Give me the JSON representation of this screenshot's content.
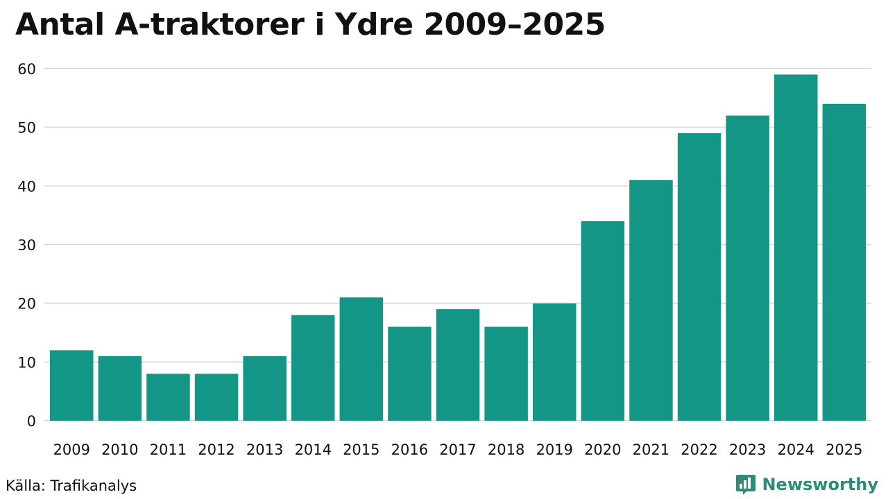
{
  "title": "Antal A-traktorer i Ydre 2009–2025",
  "source": "Källa: Trafikanalys",
  "brand": {
    "name": "Newsworthy",
    "icon": "bar-chart-speech-bubble-icon",
    "color": "#2e8b7a"
  },
  "colors": {
    "bar": "#149687",
    "grid": "#dddddd",
    "text": "#111111"
  },
  "chart_data": {
    "type": "bar",
    "categories": [
      "2009",
      "2010",
      "2011",
      "2012",
      "2013",
      "2014",
      "2015",
      "2016",
      "2017",
      "2018",
      "2019",
      "2020",
      "2021",
      "2022",
      "2023",
      "2024",
      "2025"
    ],
    "values": [
      12,
      11,
      8,
      8,
      11,
      18,
      21,
      16,
      19,
      16,
      20,
      34,
      41,
      49,
      52,
      59,
      54
    ],
    "title": "Antal A-traktorer i Ydre 2009–2025",
    "xlabel": "",
    "ylabel": "",
    "ylim": [
      0,
      60
    ],
    "yticks": [
      0,
      10,
      20,
      30,
      40,
      50,
      60
    ],
    "grid": true,
    "legend": "none"
  }
}
